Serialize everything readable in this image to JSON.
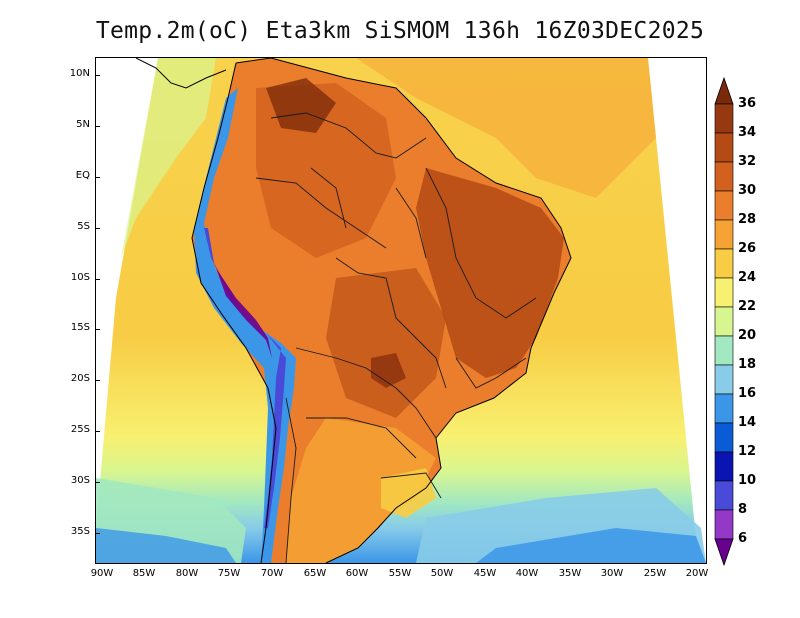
{
  "title": "Temp.2m(oC) Eta3km SiSMOM 136h 16Z03DEC2025",
  "lat_labels": [
    "10N",
    "5N",
    "EQ",
    "5S",
    "10S",
    "15S",
    "20S",
    "25S",
    "30S",
    "35S"
  ],
  "lon_labels": [
    "90W",
    "85W",
    "80W",
    "75W",
    "70W",
    "65W",
    "60W",
    "55W",
    "50W",
    "45W",
    "40W",
    "35W",
    "30W",
    "25W",
    "20W"
  ],
  "colorbar": {
    "labels": [
      "36",
      "34",
      "32",
      "30",
      "28",
      "26",
      "24",
      "22",
      "20",
      "18",
      "16",
      "14",
      "12",
      "10",
      "8",
      "6"
    ],
    "colors": [
      "#7a2a0a",
      "#963910",
      "#b44a14",
      "#d2601e",
      "#ea7e2c",
      "#f6a234",
      "#f8cc44",
      "#f8f070",
      "#d8f690",
      "#a2e8c0",
      "#88cce8",
      "#3c96e8",
      "#0a5cd6",
      "#0a14b0",
      "#4a4ad8",
      "#9438c8",
      "#6a0090"
    ]
  }
}
